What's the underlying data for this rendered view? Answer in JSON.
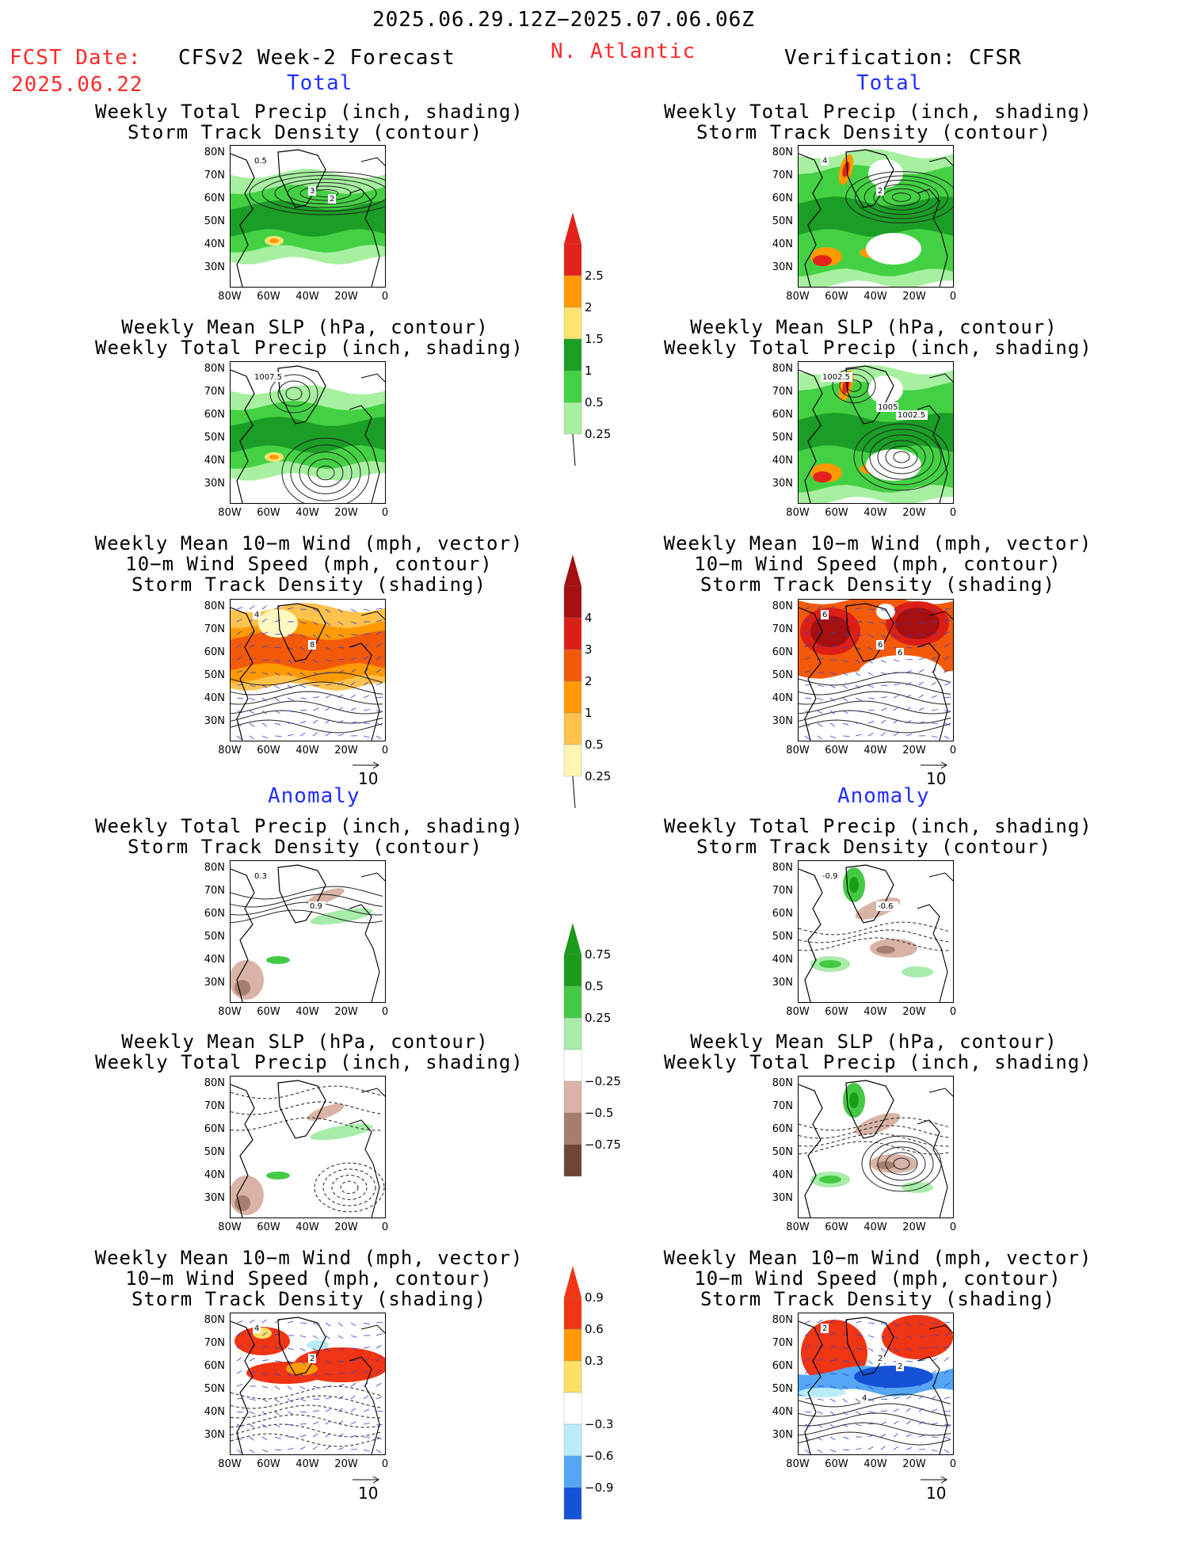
{
  "header": {
    "date_range": "2025.06.29.12Z−2025.07.06.06Z",
    "fcst_label": "FCST Date:",
    "fcst_date": "2025.06.22",
    "model": "CFSv2 Week-2 Forecast",
    "region": "N. Atlantic",
    "verification": "Verification: CFSR"
  },
  "sections": {
    "total": "Total",
    "anomaly": "Anomaly"
  },
  "titles": {
    "precip_storm": "Weekly Total Precip (inch, shading)\nStorm Track Density (contour)",
    "slp_precip": "Weekly Mean SLP (hPa, contour)\nWeekly Total Precip (inch, shading)",
    "wind_storm": "Weekly Mean 10−m Wind (mph, vector)\n10−m Wind Speed (mph, contour)\nStorm Track Density (shading)"
  },
  "axes": {
    "lat": [
      "80N",
      "70N",
      "60N",
      "50N",
      "40N",
      "30N"
    ],
    "lon": [
      "80W",
      "60W",
      "40W",
      "20W",
      "0"
    ]
  },
  "vector_ref": "10",
  "map_labels": {
    "f_precip": [
      "0.5",
      "3",
      "2"
    ],
    "v_precip": [
      "4",
      "2"
    ],
    "f_slp": [
      "1007.5"
    ],
    "v_slp": [
      "1002.5",
      "1005",
      "1002.5"
    ],
    "f_wind": [
      "4",
      "8"
    ],
    "v_wind": [
      "6",
      "6",
      "6"
    ],
    "fa_precip": [
      "0.3",
      "0.9"
    ],
    "va_precip": [
      "-0.9",
      "-0.6"
    ],
    "fa_wind": [
      "4",
      "2"
    ],
    "va_wind": [
      "2",
      "2",
      "2",
      "4"
    ]
  },
  "colorbars": {
    "precip_total": {
      "labels": [
        "2.5",
        "2",
        "1.5",
        "1",
        "0.5",
        "0.25"
      ],
      "colors": [
        "#e3231b",
        "#ff9a00",
        "#ffe270",
        "#1a9e26",
        "#43d143",
        "#a6f0a0"
      ]
    },
    "storm_total": {
      "labels": [
        "4",
        "3",
        "2",
        "1",
        "0.5",
        "0.25"
      ],
      "colors": [
        "#a50f0f",
        "#dc1f16",
        "#f25a0a",
        "#ff9a00",
        "#ffc24d",
        "#fff5b0"
      ]
    },
    "precip_anom": {
      "labels": [
        "0.75",
        "0.5",
        "0.25",
        "−0.25",
        "−0.5",
        "−0.75"
      ],
      "colors": [
        "#1c9a1c",
        "#44c944",
        "#a8ecaa",
        "#ffffff",
        "#d9b3a6",
        "#a67d6e",
        "#6e4637"
      ]
    },
    "storm_anom": {
      "labels": [
        "0.9",
        "0.6",
        "0.3",
        "−0.3",
        "−0.6",
        "−0.9"
      ],
      "colors": [
        "#f03514",
        "#ff9a00",
        "#ffe066",
        "#ffffff",
        "#b9ecf8",
        "#55a7f5",
        "#1552d6"
      ]
    }
  }
}
